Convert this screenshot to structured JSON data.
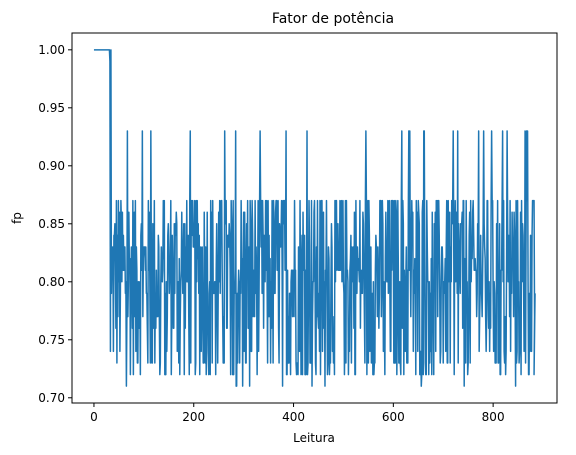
{
  "chart_data": {
    "type": "line",
    "title": "Fator de potência",
    "xlabel": "Leitura",
    "ylabel": "fp",
    "xlim": [
      -44,
      928
    ],
    "ylim": [
      0.6955,
      1.0145
    ],
    "xticks": [
      0,
      200,
      400,
      600,
      800
    ],
    "yticks": [
      0.7,
      0.75,
      0.8,
      0.85,
      0.9,
      0.95,
      1.0
    ],
    "ytick_labels": [
      "0.70",
      "0.75",
      "0.80",
      "0.85",
      "0.90",
      "0.95",
      "1.00"
    ],
    "grid": false,
    "line_color": "#1f77b4",
    "series": [
      {
        "x_start": 0,
        "x_end": 884,
        "generated": "oscillating power-factor readings between 0.71 and 0.93 after an initial plateau at 1.00 (x 0–30) with a drop to 0.74 near x=30",
        "plateau": {
          "x": [
            0,
            31
          ],
          "value": 1.0
        },
        "range_after_plateau": [
          0.71,
          0.93
        ],
        "last_value": 0.79
      }
    ]
  }
}
